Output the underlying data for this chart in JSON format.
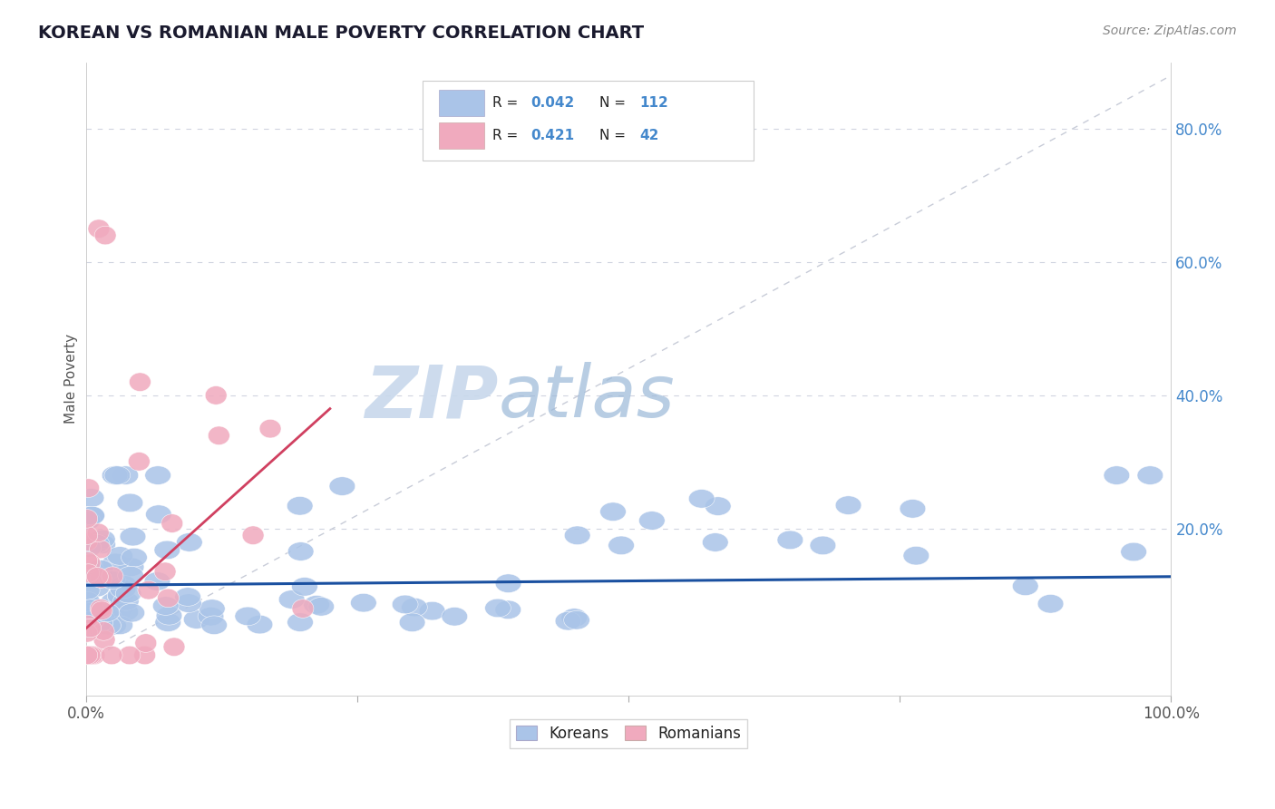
{
  "title": "KOREAN VS ROMANIAN MALE POVERTY CORRELATION CHART",
  "source": "Source: ZipAtlas.com",
  "ylabel": "Male Poverty",
  "xlim": [
    0,
    1
  ],
  "ylim": [
    -0.05,
    0.9
  ],
  "korean_color": "#aac4e8",
  "romanian_color": "#f0aabe",
  "korean_trend_color": "#1a50a0",
  "romanian_trend_color": "#d04060",
  "ref_line_color": "#c8ccd8",
  "background_color": "#ffffff",
  "grid_color": "#d0d4e0",
  "legend_value_color": "#4488cc",
  "watermark_ZIP_color": "#c8d8ec",
  "watermark_atlas_color": "#9ab8d8",
  "korean_R": 0.042,
  "korean_N": 112,
  "romanian_R": 0.421,
  "romanian_N": 42
}
